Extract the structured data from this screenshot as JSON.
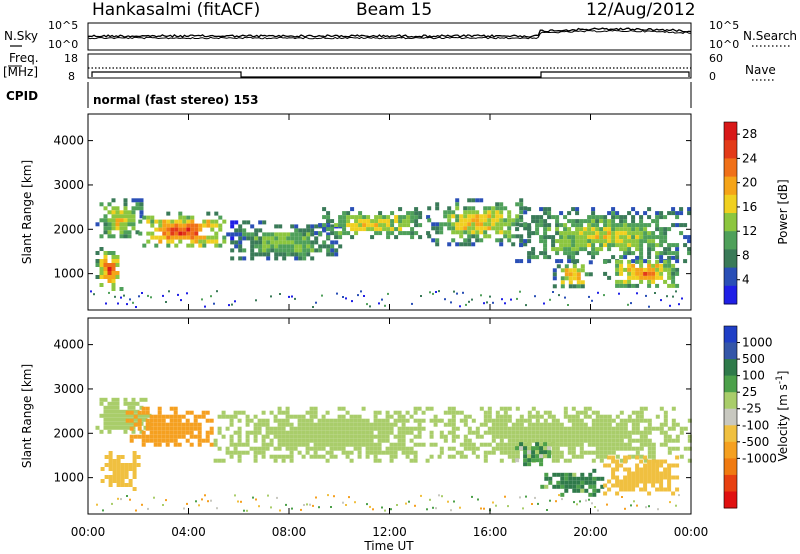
{
  "header": {
    "station": "Hankasalmi (fitACF)",
    "beam": "Beam 15",
    "date": "12/Aug/2012"
  },
  "top_panels": {
    "nsky_label": "N.Sky",
    "nsearch_label": "N.Search",
    "noise_ticks_left": [
      "10^5",
      "10^0"
    ],
    "noise_ticks_right": [
      "10^5",
      "10^0"
    ],
    "freq_label_1": "Freq.",
    "freq_label_2": "[MHz]",
    "freq_ticks": [
      "18",
      "8"
    ],
    "nave_label": "Nave",
    "nave_ticks": [
      "60",
      "0"
    ],
    "cpid_label": "CPID",
    "cpid_text": "normal (fast stereo) 153"
  },
  "colors": {
    "power_scale": [
      "#1f1fe6",
      "#2a4fb6",
      "#3a7a58",
      "#4fa05a",
      "#8cc63f",
      "#f0d020",
      "#f5a418",
      "#f07018",
      "#e33a18",
      "#d81818"
    ],
    "velocity_scale": [
      "#1f3fc6",
      "#3456a8",
      "#2f7a4a",
      "#4ca04a",
      "#a9cd6a",
      "#c8c8c0",
      "#f0c040",
      "#f5a020",
      "#f07a10",
      "#e84010",
      "#e01010"
    ],
    "noise_line": "#000000"
  },
  "chart_data": [
    {
      "type": "heatmap",
      "name": "power",
      "ylabel": "Slant Range [km]",
      "xlabel": "Time UT",
      "x_ticks": [
        "00:00",
        "04:00",
        "08:00",
        "12:00",
        "16:00",
        "20:00",
        "00:00"
      ],
      "xlim_hours": [
        0,
        24
      ],
      "y_ticks": [
        1000,
        2000,
        3000,
        4000
      ],
      "ylim": [
        180,
        4600
      ],
      "colorbar_label": "Power [dB]",
      "colorbar_ticks": [
        4,
        8,
        12,
        16,
        20,
        24,
        28
      ],
      "clim": [
        0,
        30
      ],
      "echo_bands": [
        {
          "t": [
            0.3,
            2.2
          ],
          "range": [
            1800,
            2700
          ],
          "peak": 18
        },
        {
          "t": [
            0.3,
            1.3
          ],
          "range": [
            650,
            1600
          ],
          "peak": 26
        },
        {
          "t": [
            2.0,
            5.5
          ],
          "range": [
            1600,
            2400
          ],
          "peak": 26
        },
        {
          "t": [
            5.5,
            10.0
          ],
          "range": [
            1300,
            2200
          ],
          "peak": 14
        },
        {
          "t": [
            9.0,
            13.5
          ],
          "range": [
            1800,
            2500
          ],
          "peak": 18
        },
        {
          "t": [
            13.5,
            17.5
          ],
          "range": [
            1700,
            2700
          ],
          "peak": 18
        },
        {
          "t": [
            17.0,
            24.0
          ],
          "range": [
            1300,
            2500
          ],
          "peak": 16
        },
        {
          "t": [
            18.5,
            20.0
          ],
          "range": [
            700,
            1300
          ],
          "peak": 20
        },
        {
          "t": [
            20.5,
            23.5
          ],
          "range": [
            700,
            1400
          ],
          "peak": 22
        }
      ]
    },
    {
      "type": "heatmap",
      "name": "velocity",
      "ylabel": "Slant Range [km]",
      "xlabel": "Time UT",
      "x_ticks": [
        "00:00",
        "04:00",
        "08:00",
        "12:00",
        "16:00",
        "20:00",
        "00:00"
      ],
      "xlim_hours": [
        0,
        24
      ],
      "y_ticks": [
        1000,
        2000,
        3000,
        4000
      ],
      "ylim": [
        180,
        4600
      ],
      "colorbar_label": "Velocity [m s^-1]",
      "colorbar_ticks": [
        1000,
        500,
        100,
        25,
        -25,
        -100,
        -500,
        -1000
      ],
      "echo_bands": [
        {
          "t": [
            0.3,
            2.5
          ],
          "range": [
            2000,
            2800
          ],
          "v": 0
        },
        {
          "t": [
            0.5,
            2.0
          ],
          "range": [
            700,
            1600
          ],
          "v": -300
        },
        {
          "t": [
            1.5,
            5.0
          ],
          "range": [
            1700,
            2600
          ],
          "v": -700
        },
        {
          "t": [
            5.0,
            14.0
          ],
          "range": [
            1400,
            2600
          ],
          "v": 0
        },
        {
          "t": [
            14.0,
            24.0
          ],
          "range": [
            1400,
            2600
          ],
          "v": 0
        },
        {
          "t": [
            18.0,
            20.5
          ],
          "range": [
            650,
            1200
          ],
          "v": 150
        },
        {
          "t": [
            20.5,
            23.5
          ],
          "range": [
            650,
            1500
          ],
          "v": -300
        },
        {
          "t": [
            17.0,
            18.5
          ],
          "range": [
            1300,
            1800
          ],
          "v": 80
        }
      ]
    }
  ]
}
